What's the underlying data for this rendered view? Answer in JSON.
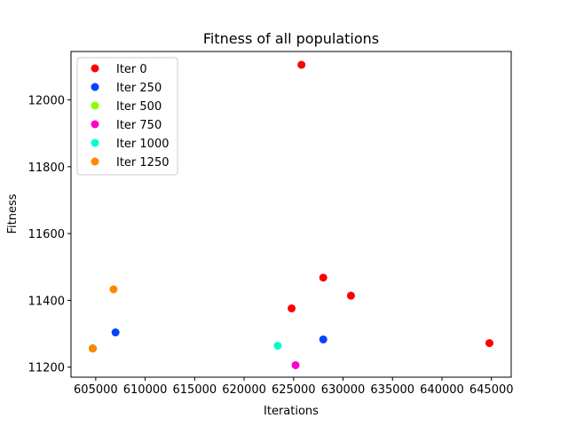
{
  "chart_data": {
    "type": "scatter",
    "title": "Fitness of all populations",
    "xlabel": "Iterations",
    "ylabel": "Fitness",
    "xlim": [
      602500,
      647000
    ],
    "ylim": [
      11170,
      12145
    ],
    "xticks": [
      605000,
      610000,
      615000,
      620000,
      625000,
      630000,
      635000,
      640000,
      645000
    ],
    "yticks": [
      11200,
      11400,
      11600,
      11800,
      12000
    ],
    "grid": false,
    "legend_position": "top-left",
    "series": [
      {
        "name": "Iter 0",
        "color": "#ff0000",
        "points": [
          [
            625800,
            12105
          ],
          [
            628000,
            11468
          ],
          [
            630800,
            11414
          ],
          [
            624800,
            11376
          ],
          [
            644800,
            11272
          ]
        ]
      },
      {
        "name": "Iter 250",
        "color": "#0044ff",
        "points": [
          [
            607000,
            11304
          ],
          [
            628000,
            11283
          ],
          [
            604700,
            11256
          ]
        ]
      },
      {
        "name": "Iter 500",
        "color": "#88ff00",
        "points": [
          [
            604700,
            11256
          ]
        ]
      },
      {
        "name": "Iter 750",
        "color": "#ff00cc",
        "points": [
          [
            625200,
            11206
          ],
          [
            604700,
            11256
          ]
        ]
      },
      {
        "name": "Iter 1000",
        "color": "#00ffcc",
        "points": [
          [
            623400,
            11264
          ],
          [
            604700,
            11256
          ]
        ]
      },
      {
        "name": "Iter 1250",
        "color": "#ff8800",
        "points": [
          [
            606800,
            11433
          ],
          [
            604700,
            11256
          ]
        ]
      }
    ]
  }
}
